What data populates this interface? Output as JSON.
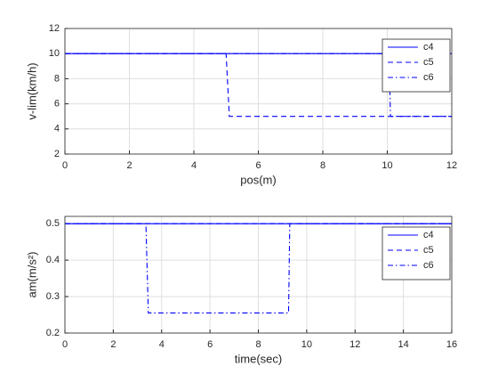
{
  "chart_data": [
    {
      "type": "line",
      "xlabel": "pos(m)",
      "ylabel": "v-lim(km/h)",
      "xlim": [
        0,
        12
      ],
      "ylim": [
        2,
        12
      ],
      "xticks": [
        0,
        2,
        4,
        6,
        8,
        10,
        12
      ],
      "yticks": [
        2,
        4,
        6,
        8,
        10,
        12
      ],
      "grid": true,
      "legend": "upper right",
      "series": [
        {
          "name": "c4",
          "color": "#0000ff",
          "line_style": "solid",
          "x": [
            0,
            12
          ],
          "values": [
            10,
            10
          ]
        },
        {
          "name": "c5",
          "color": "#0000ff",
          "line_style": "dashed",
          "x": [
            0,
            5,
            5.1,
            12
          ],
          "values": [
            10,
            10,
            5,
            5
          ]
        },
        {
          "name": "c6",
          "color": "#0000ff",
          "line_style": "dashdot",
          "x": [
            0,
            10.05,
            10.1,
            12
          ],
          "values": [
            10,
            10,
            5,
            5
          ]
        }
      ]
    },
    {
      "type": "line",
      "xlabel": "time(sec)",
      "ylabel": "am(m/s²)",
      "xlim": [
        0,
        16
      ],
      "ylim": [
        0.2,
        0.52
      ],
      "xticks": [
        0,
        2,
        4,
        6,
        8,
        10,
        12,
        14,
        16
      ],
      "yticks": [
        0.2,
        0.3,
        0.4,
        0.5
      ],
      "grid": true,
      "legend": "upper right",
      "series": [
        {
          "name": "c4",
          "color": "#0000ff",
          "line_style": "solid",
          "x": [
            0,
            16
          ],
          "values": [
            0.5,
            0.5
          ]
        },
        {
          "name": "c5",
          "color": "#0000ff",
          "line_style": "dashed",
          "x": [
            0,
            16
          ],
          "values": [
            0.5,
            0.5
          ]
        },
        {
          "name": "c6",
          "color": "#0000ff",
          "line_style": "dashdot",
          "x": [
            0,
            3.35,
            3.45,
            9.25,
            9.3,
            16
          ],
          "values": [
            0.5,
            0.5,
            0.255,
            0.255,
            0.5,
            0.5
          ]
        }
      ]
    }
  ]
}
